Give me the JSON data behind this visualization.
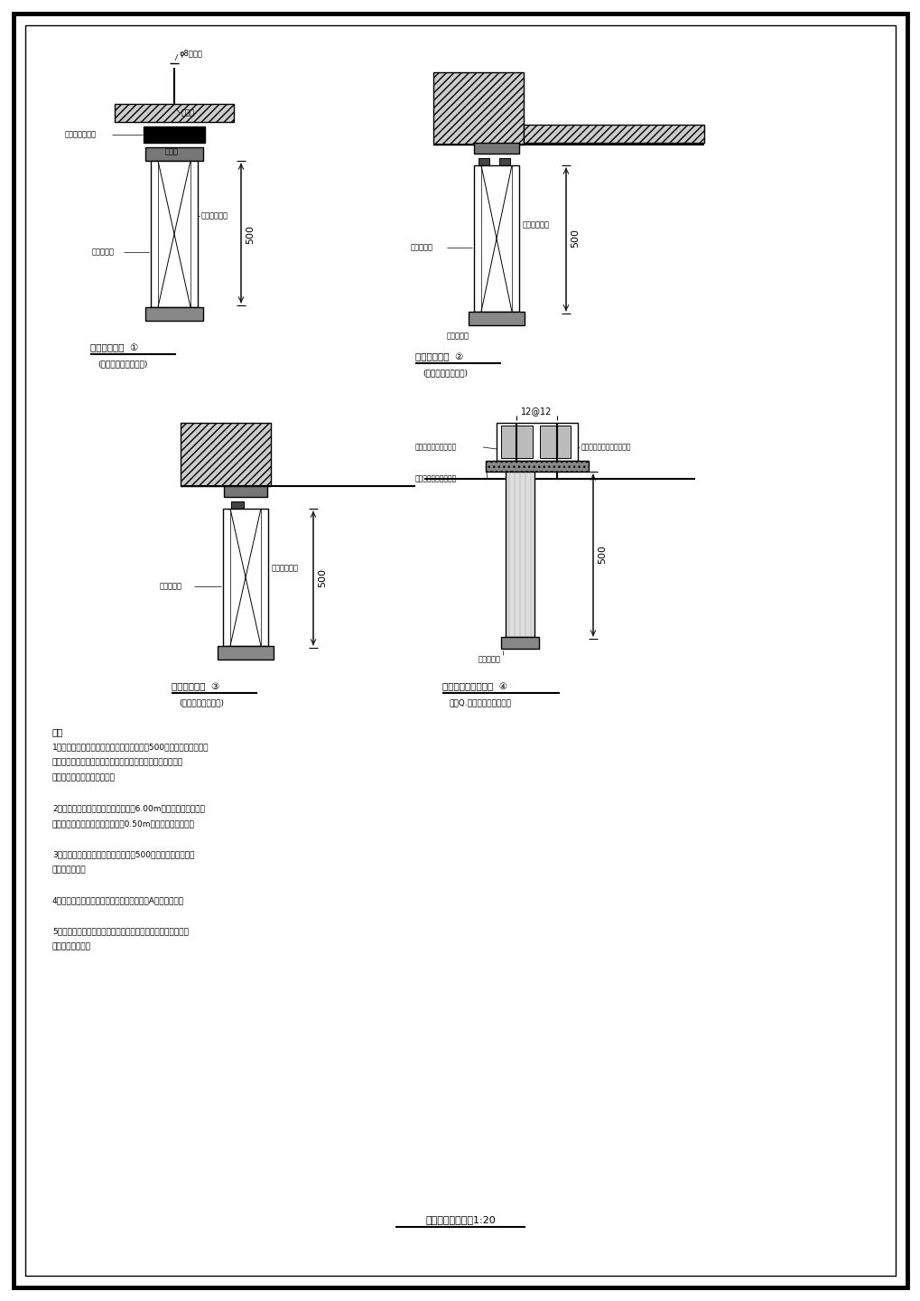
{
  "page_bg": "#ffffff",
  "scale_text": "挡烟垂壁安装详图1:20",
  "d1_title": "挡烟垂壁详图  ①",
  "d1_sub": "(有带顶头的挡烟垂壁)",
  "d2_title": "挡烟垂壁详图  ②",
  "d2_sub": "(有带头的挡烟垂壁)",
  "d3_title": "挡烟垂壁详图  ③",
  "d3_sub": "(无顶头的挡烟垂壁)",
  "d4_title": "卷进式挡烟垂壁详图  ④",
  "d4_sub": "注：Q.表锟垂壁的衬料宽度",
  "note_header": "注：",
  "note1a": "1、用不锈钢丝材料做成，从顶棚下垂不小于500的固定或活动的挡烟",
  "note1b": "设施，该活动挡垂壁系和火灾时后烟幕，箱柜其它控制设备的",
  "note1c": "作用，自动下垂的挡烟垂壁。",
  "note2a": "2、收藏挡烟设备的空柜，净高不超过6.00m的范围，且采用挡烟",
  "note2b": "垂壁，隔墙或从顶棚下高出不小于0.50m的架陵分防烟分区。",
  "note3": "3、每个防烟分区的建筑面积不应超过500㎡，且防烟分区不应",
  "note3b": "穿越防火分区。",
  "note4": "4、挡烟分区的挡烟垂壁，其装修材料应采用A级装修材料。",
  "note5a": "5、此标准图所列举的为常用的类型，活动挡烟垂壁选用时，参",
  "note5b": "照厂家产品说明。"
}
